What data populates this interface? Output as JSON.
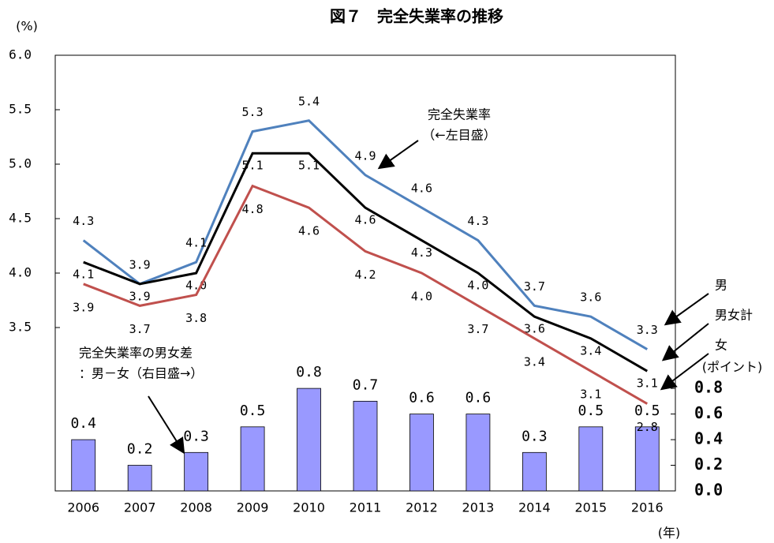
{
  "chart_data": {
    "type": "combo",
    "title": "図７　完全失業率の推移",
    "y_label": "(%)",
    "y2_label": "(ポイント)",
    "x_label": "(年)",
    "categories": [
      "2006",
      "2007",
      "2008",
      "2009",
      "2010",
      "2011",
      "2012",
      "2013",
      "2014",
      "2015",
      "2016"
    ],
    "ylim": [
      2.0,
      6.0
    ],
    "yticks": [
      {
        "value": 3.5,
        "label": "3.5"
      },
      {
        "value": 4,
        "label": "4.0"
      },
      {
        "value": 4.5,
        "label": "4.5"
      },
      {
        "value": 5,
        "label": "5.0"
      },
      {
        "value": 5.5,
        "label": "5.5"
      },
      {
        "value": 6,
        "label": "6.0"
      }
    ],
    "y2lim": [
      0,
      3.4
    ],
    "y2ticks": [
      {
        "value": 0,
        "label": "0.0"
      },
      0.2,
      0.4,
      0.6,
      0.8
    ],
    "series": [
      {
        "name": "男",
        "type": "line",
        "color": "#4f81bd",
        "values": [
          4.3,
          3.9,
          4.1,
          5.3,
          5.4,
          4.9,
          4.6,
          4.3,
          3.7,
          3.6,
          3.3
        ],
        "value_labels": [
          "4.3",
          "3.9",
          "4.1",
          "5.3",
          "5.4",
          "4.9",
          "4.6",
          "4.3",
          "3.7",
          "3.6",
          "3.3"
        ]
      },
      {
        "name": "男女計",
        "type": "line",
        "color": "#000000",
        "values": [
          4.1,
          3.9,
          4.0,
          5.1,
          5.1,
          4.6,
          4.3,
          4.0,
          3.6,
          3.4,
          3.1
        ],
        "value_labels": [
          "4.1",
          "3.9",
          "4.0",
          "5.1",
          "5.1",
          "4.6",
          "4.3",
          "4.0",
          "3.6",
          "3.4",
          "3.1"
        ]
      },
      {
        "name": "女",
        "type": "line",
        "color": "#c0504d",
        "values": [
          3.9,
          3.7,
          3.8,
          4.8,
          4.6,
          4.2,
          4.0,
          3.7,
          3.4,
          3.1,
          2.8
        ],
        "value_labels": [
          "3.9",
          "3.7",
          "3.8",
          "4.8",
          "4.6",
          "4.2",
          "4.0",
          "3.7",
          "3.4",
          "3.1",
          "2.8"
        ]
      },
      {
        "name": "完全失業率の男女差",
        "type": "bar",
        "axis": "y2",
        "color": "#9999ff",
        "values": [
          0.4,
          0.2,
          0.3,
          0.5,
          0.8,
          0.7,
          0.6,
          0.6,
          0.3,
          0.5,
          0.5
        ]
      }
    ],
    "annotations": [
      {
        "lines": [
          "完全失業率",
          "（←左目盛）"
        ]
      },
      {
        "lines": [
          "：男－女（右目盛→）"
        ]
      }
    ]
  }
}
